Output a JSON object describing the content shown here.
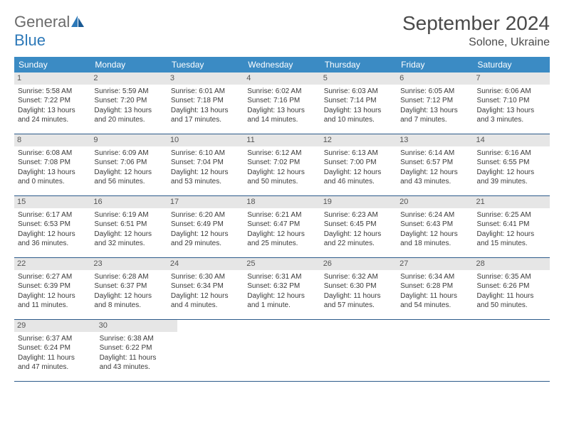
{
  "colors": {
    "header_bg": "#3b8bc4",
    "week_border": "#2c5a8a",
    "daynum_bg": "#e6e6e6",
    "text": "#3a3a3a",
    "logo_grey": "#6b6b6b",
    "logo_blue": "#2c78b8",
    "title_color": "#4a4a4a"
  },
  "logo": {
    "part1": "General",
    "part2": "Blue"
  },
  "title": "September 2024",
  "location": "Solone, Ukraine",
  "day_headers": [
    "Sunday",
    "Monday",
    "Tuesday",
    "Wednesday",
    "Thursday",
    "Friday",
    "Saturday"
  ],
  "weeks": [
    [
      {
        "n": "1",
        "sr": "Sunrise: 5:58 AM",
        "ss": "Sunset: 7:22 PM",
        "d1": "Daylight: 13 hours",
        "d2": "and 24 minutes."
      },
      {
        "n": "2",
        "sr": "Sunrise: 5:59 AM",
        "ss": "Sunset: 7:20 PM",
        "d1": "Daylight: 13 hours",
        "d2": "and 20 minutes."
      },
      {
        "n": "3",
        "sr": "Sunrise: 6:01 AM",
        "ss": "Sunset: 7:18 PM",
        "d1": "Daylight: 13 hours",
        "d2": "and 17 minutes."
      },
      {
        "n": "4",
        "sr": "Sunrise: 6:02 AM",
        "ss": "Sunset: 7:16 PM",
        "d1": "Daylight: 13 hours",
        "d2": "and 14 minutes."
      },
      {
        "n": "5",
        "sr": "Sunrise: 6:03 AM",
        "ss": "Sunset: 7:14 PM",
        "d1": "Daylight: 13 hours",
        "d2": "and 10 minutes."
      },
      {
        "n": "6",
        "sr": "Sunrise: 6:05 AM",
        "ss": "Sunset: 7:12 PM",
        "d1": "Daylight: 13 hours",
        "d2": "and 7 minutes."
      },
      {
        "n": "7",
        "sr": "Sunrise: 6:06 AM",
        "ss": "Sunset: 7:10 PM",
        "d1": "Daylight: 13 hours",
        "d2": "and 3 minutes."
      }
    ],
    [
      {
        "n": "8",
        "sr": "Sunrise: 6:08 AM",
        "ss": "Sunset: 7:08 PM",
        "d1": "Daylight: 13 hours",
        "d2": "and 0 minutes."
      },
      {
        "n": "9",
        "sr": "Sunrise: 6:09 AM",
        "ss": "Sunset: 7:06 PM",
        "d1": "Daylight: 12 hours",
        "d2": "and 56 minutes."
      },
      {
        "n": "10",
        "sr": "Sunrise: 6:10 AM",
        "ss": "Sunset: 7:04 PM",
        "d1": "Daylight: 12 hours",
        "d2": "and 53 minutes."
      },
      {
        "n": "11",
        "sr": "Sunrise: 6:12 AM",
        "ss": "Sunset: 7:02 PM",
        "d1": "Daylight: 12 hours",
        "d2": "and 50 minutes."
      },
      {
        "n": "12",
        "sr": "Sunrise: 6:13 AM",
        "ss": "Sunset: 7:00 PM",
        "d1": "Daylight: 12 hours",
        "d2": "and 46 minutes."
      },
      {
        "n": "13",
        "sr": "Sunrise: 6:14 AM",
        "ss": "Sunset: 6:57 PM",
        "d1": "Daylight: 12 hours",
        "d2": "and 43 minutes."
      },
      {
        "n": "14",
        "sr": "Sunrise: 6:16 AM",
        "ss": "Sunset: 6:55 PM",
        "d1": "Daylight: 12 hours",
        "d2": "and 39 minutes."
      }
    ],
    [
      {
        "n": "15",
        "sr": "Sunrise: 6:17 AM",
        "ss": "Sunset: 6:53 PM",
        "d1": "Daylight: 12 hours",
        "d2": "and 36 minutes."
      },
      {
        "n": "16",
        "sr": "Sunrise: 6:19 AM",
        "ss": "Sunset: 6:51 PM",
        "d1": "Daylight: 12 hours",
        "d2": "and 32 minutes."
      },
      {
        "n": "17",
        "sr": "Sunrise: 6:20 AM",
        "ss": "Sunset: 6:49 PM",
        "d1": "Daylight: 12 hours",
        "d2": "and 29 minutes."
      },
      {
        "n": "18",
        "sr": "Sunrise: 6:21 AM",
        "ss": "Sunset: 6:47 PM",
        "d1": "Daylight: 12 hours",
        "d2": "and 25 minutes."
      },
      {
        "n": "19",
        "sr": "Sunrise: 6:23 AM",
        "ss": "Sunset: 6:45 PM",
        "d1": "Daylight: 12 hours",
        "d2": "and 22 minutes."
      },
      {
        "n": "20",
        "sr": "Sunrise: 6:24 AM",
        "ss": "Sunset: 6:43 PM",
        "d1": "Daylight: 12 hours",
        "d2": "and 18 minutes."
      },
      {
        "n": "21",
        "sr": "Sunrise: 6:25 AM",
        "ss": "Sunset: 6:41 PM",
        "d1": "Daylight: 12 hours",
        "d2": "and 15 minutes."
      }
    ],
    [
      {
        "n": "22",
        "sr": "Sunrise: 6:27 AM",
        "ss": "Sunset: 6:39 PM",
        "d1": "Daylight: 12 hours",
        "d2": "and 11 minutes."
      },
      {
        "n": "23",
        "sr": "Sunrise: 6:28 AM",
        "ss": "Sunset: 6:37 PM",
        "d1": "Daylight: 12 hours",
        "d2": "and 8 minutes."
      },
      {
        "n": "24",
        "sr": "Sunrise: 6:30 AM",
        "ss": "Sunset: 6:34 PM",
        "d1": "Daylight: 12 hours",
        "d2": "and 4 minutes."
      },
      {
        "n": "25",
        "sr": "Sunrise: 6:31 AM",
        "ss": "Sunset: 6:32 PM",
        "d1": "Daylight: 12 hours",
        "d2": "and 1 minute."
      },
      {
        "n": "26",
        "sr": "Sunrise: 6:32 AM",
        "ss": "Sunset: 6:30 PM",
        "d1": "Daylight: 11 hours",
        "d2": "and 57 minutes."
      },
      {
        "n": "27",
        "sr": "Sunrise: 6:34 AM",
        "ss": "Sunset: 6:28 PM",
        "d1": "Daylight: 11 hours",
        "d2": "and 54 minutes."
      },
      {
        "n": "28",
        "sr": "Sunrise: 6:35 AM",
        "ss": "Sunset: 6:26 PM",
        "d1": "Daylight: 11 hours",
        "d2": "and 50 minutes."
      }
    ],
    [
      {
        "n": "29",
        "sr": "Sunrise: 6:37 AM",
        "ss": "Sunset: 6:24 PM",
        "d1": "Daylight: 11 hours",
        "d2": "and 47 minutes."
      },
      {
        "n": "30",
        "sr": "Sunrise: 6:38 AM",
        "ss": "Sunset: 6:22 PM",
        "d1": "Daylight: 11 hours",
        "d2": "and 43 minutes."
      },
      null,
      null,
      null,
      null,
      null
    ]
  ]
}
